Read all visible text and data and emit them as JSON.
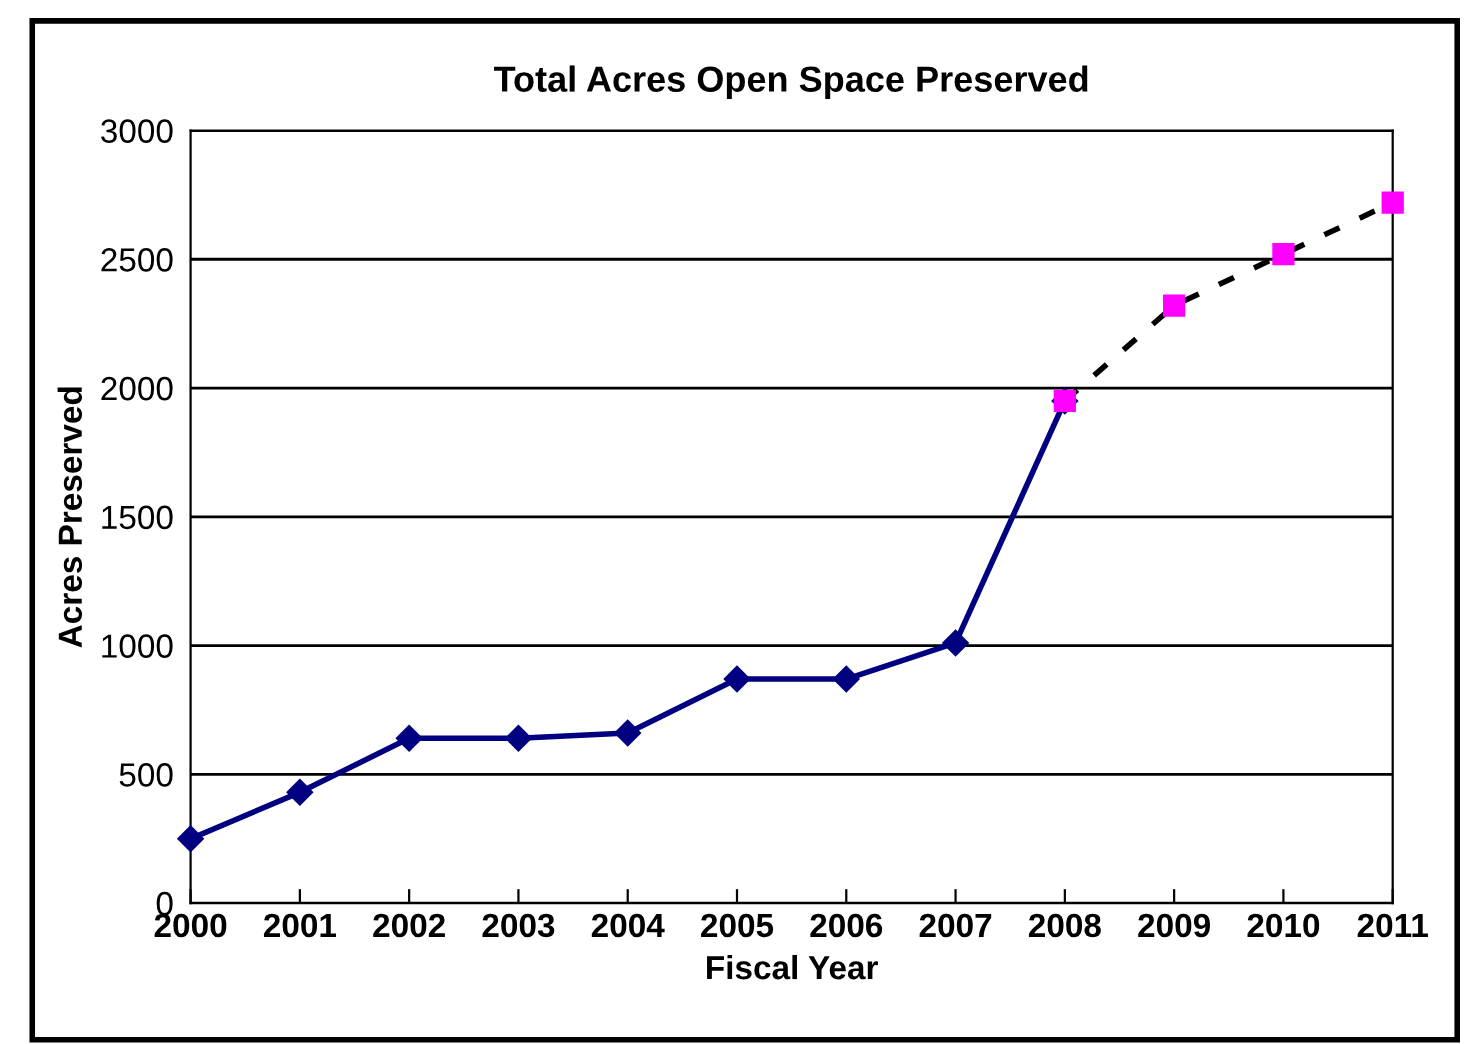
{
  "chart_data": {
    "type": "line",
    "title": "Total Acres Open Space Preserved",
    "xlabel": "Fiscal Year",
    "ylabel": "Acres Preserved",
    "categories": [
      "2000",
      "2001",
      "2002",
      "2003",
      "2004",
      "2005",
      "2006",
      "2007",
      "2008",
      "2009",
      "2010",
      "2011"
    ],
    "series": [
      {
        "color": "#000080",
        "marker": "diamond",
        "line_style": "solid",
        "values": [
          250,
          430,
          640,
          640,
          660,
          870,
          870,
          1010,
          1950,
          null,
          null,
          null
        ]
      },
      {
        "color": "#000000",
        "colors": [
          null,
          null,
          null,
          null,
          null,
          null,
          null,
          null,
          "#ff00ff",
          "#ff00ff",
          "#ff00ff",
          "#ff00ff"
        ],
        "marker": "square",
        "line_style": "dashed",
        "values": [
          null,
          null,
          null,
          null,
          null,
          null,
          null,
          null,
          1950,
          2320,
          2520,
          2720
        ]
      }
    ],
    "ylim": [
      0,
      3000
    ],
    "yticks": [
      0,
      500,
      1000,
      1500,
      2000,
      2500,
      3000
    ],
    "grid": "y"
  }
}
